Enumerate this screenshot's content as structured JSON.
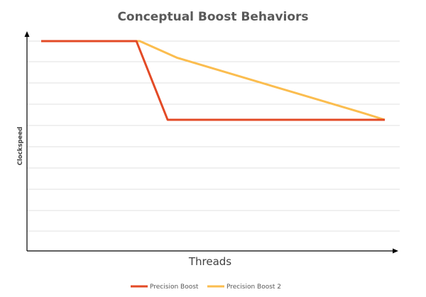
{
  "chart_data": {
    "type": "line",
    "title": "Conceptual Boost Behaviors",
    "xlabel": "Threads",
    "ylabel": "Clockspeed",
    "xlim": [
      0,
      100
    ],
    "ylim": [
      0,
      10
    ],
    "grid": true,
    "legend_position": "bottom",
    "x_tick_labels": [],
    "y_tick_labels": [],
    "series": [
      {
        "name": "Precision Boost",
        "color": "#e34a26",
        "points": [
          [
            0,
            10
          ],
          [
            27.7,
            10
          ],
          [
            36.8,
            6.2
          ],
          [
            100,
            6.2
          ]
        ]
      },
      {
        "name": "Precision Boost 2",
        "color": "#fbbd4f",
        "points": [
          [
            0,
            10
          ],
          [
            28.7,
            10
          ],
          [
            39.5,
            9.2
          ],
          [
            94.2,
            6.5
          ],
          [
            100,
            6.2
          ]
        ]
      }
    ]
  }
}
